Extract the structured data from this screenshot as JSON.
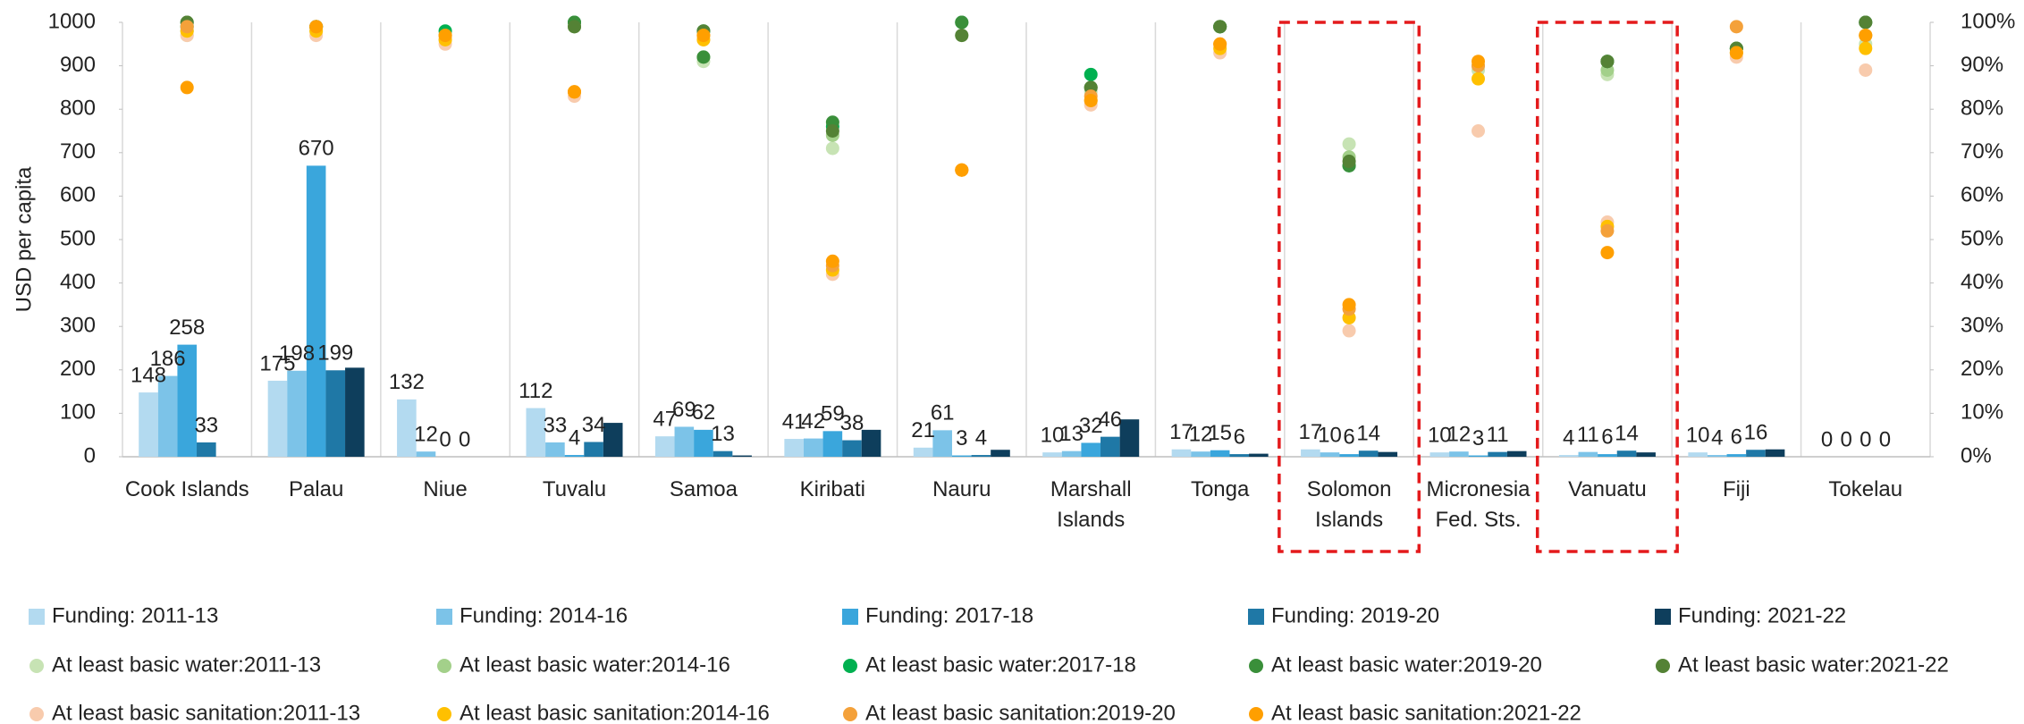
{
  "chart_data": {
    "type": "bar",
    "y_label": "USD per capita",
    "categories": [
      "Cook Islands",
      "Palau",
      "Niue",
      "Tuvalu",
      "Samoa",
      "Kiribati",
      "Nauru",
      "Marshall Islands",
      "Tonga",
      "Solomon Islands",
      "Micronesia Fed. Sts.",
      "Vanuatu",
      "Fiji",
      "Tokelau"
    ],
    "ylim": [
      0,
      1000
    ],
    "yticks": [
      0,
      100,
      200,
      300,
      400,
      500,
      600,
      700,
      800,
      900,
      1000
    ],
    "y2lim": [
      0,
      100
    ],
    "y2ticks": [
      {
        "value": 0,
        "label": "0%"
      },
      {
        "value": 10,
        "label": "10%"
      },
      {
        "value": 20,
        "label": "20%"
      },
      {
        "value": 30,
        "label": "30%"
      },
      {
        "value": 40,
        "label": "40%"
      },
      {
        "value": 50,
        "label": "50%"
      },
      {
        "value": 60,
        "label": "60%"
      },
      {
        "value": 70,
        "label": "70%"
      },
      {
        "value": 80,
        "label": "80%"
      },
      {
        "value": 90,
        "label": "90%"
      },
      {
        "value": 100,
        "label": "100%"
      }
    ],
    "grid": false,
    "highlight": [
      "Solomon Islands",
      "Vanuatu"
    ],
    "series": [
      {
        "name": "Funding: 2011-13",
        "type": "bar",
        "color": "#b3daf0",
        "data_labels": true,
        "values": [
          148,
          175,
          132,
          112,
          47,
          41,
          21,
          10,
          17,
          17,
          10,
          4,
          10,
          0
        ]
      },
      {
        "name": "Funding: 2014-16",
        "type": "bar",
        "color": "#7cc3e8",
        "data_labels": true,
        "values": [
          186,
          198,
          12,
          33,
          69,
          42,
          61,
          13,
          12,
          10,
          12,
          11,
          4,
          0
        ]
      },
      {
        "name": "Funding: 2017-18",
        "type": "bar",
        "color": "#3aa6dc",
        "data_labels": true,
        "values": [
          258,
          670,
          0,
          4,
          62,
          59,
          3,
          32,
          15,
          6,
          3,
          6,
          6,
          0
        ]
      },
      {
        "name": "Funding: 2019-20",
        "type": "bar",
        "color": "#1f78a6",
        "data_labels": true,
        "values": [
          33,
          199,
          0,
          34,
          13,
          38,
          4,
          46,
          6,
          14,
          11,
          14,
          16,
          0
        ]
      },
      {
        "name": "Funding: 2021-22",
        "type": "bar",
        "color": "#0e3e5c",
        "data_labels": false,
        "values": [
          null,
          205,
          null,
          78,
          3,
          62,
          16,
          86,
          7,
          11,
          13,
          10,
          17,
          null
        ]
      },
      {
        "name": "At least basic water:2011-13",
        "type": "scatter",
        "axis": "y2",
        "color": "#c7e3b4",
        "values": [
          97,
          98,
          96,
          99,
          91,
          71,
          null,
          84,
          99,
          72,
          89,
          88,
          93,
          95
        ]
      },
      {
        "name": "At least basic water:2014-16",
        "type": "scatter",
        "axis": "y2",
        "color": "#a3d08a",
        "values": [
          98,
          99,
          97,
          99,
          92,
          74,
          97,
          85,
          99,
          69,
          90,
          89,
          94,
          97
        ]
      },
      {
        "name": "At least basic water:2017-18",
        "type": "scatter",
        "axis": "y2",
        "color": "#00b050",
        "values": [
          99,
          99,
          98,
          100,
          98,
          76,
          100,
          88,
          99,
          67,
          null,
          91,
          94,
          100
        ]
      },
      {
        "name": "At least basic water:2019-20",
        "type": "scatter",
        "axis": "y2",
        "color": "#3a8f3a",
        "values": [
          100,
          99,
          null,
          100,
          92,
          77,
          100,
          85,
          99,
          67,
          null,
          91,
          94,
          100
        ]
      },
      {
        "name": "At least basic water:2021-22",
        "type": "scatter",
        "axis": "y2",
        "color": "#548235",
        "values": [
          100,
          99,
          null,
          99,
          98,
          75,
          97,
          85,
          99,
          68,
          null,
          91,
          94,
          100
        ]
      },
      {
        "name": "At least basic sanitation:2011-13",
        "type": "scatter",
        "axis": "y2",
        "color": "#f8cbad",
        "values": [
          97,
          97,
          95,
          83,
          96,
          42,
          66,
          81,
          93,
          29,
          75,
          54,
          92,
          89
        ]
      },
      {
        "name": "At least basic sanitation:2014-16",
        "type": "scatter",
        "axis": "y2",
        "color": "#ffc000",
        "values": [
          98,
          98,
          96,
          84,
          96,
          43,
          66,
          82,
          94,
          32,
          87,
          53,
          93,
          94
        ]
      },
      {
        "name": "At least basic sanitation:2019-20",
        "type": "scatter",
        "axis": "y2",
        "color": "#f4a13a",
        "values": [
          99,
          99,
          97,
          84,
          97,
          44,
          66,
          83,
          95,
          34,
          90,
          52,
          99,
          97
        ]
      },
      {
        "name": "At least basic sanitation:2021-22",
        "type": "scatter",
        "axis": "y2",
        "color": "#ff9f00",
        "values": [
          85,
          99,
          97,
          84,
          97,
          45,
          66,
          82,
          95,
          35,
          91,
          47,
          93,
          97
        ]
      }
    ]
  }
}
